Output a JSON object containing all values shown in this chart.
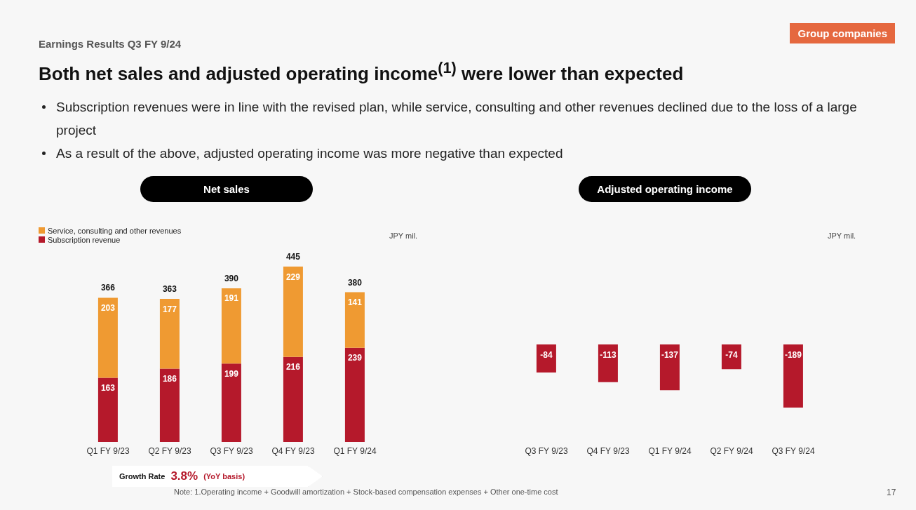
{
  "chart_data": [
    {
      "type": "other",
      "subtitle": "Earnings Results Q3 FY 9/24",
      "title": "Both net sales and adjusted operating income$^{(1)}$ were lower than expected",
      "annotations": [
        "Subscription revenues were in line with the revised plan, while service, consulting and other revenues declined due to the loss of a large project",
        "As a result of the above, adjusted operating income was more negative than expected",
        "Group companies",
        "Note: 1.Operating income + Goodwill amortization + Stock-based compensation expenses + Other one-time cost",
        "17"
      ]
    },
    {
      "type": "bar",
      "title": "Net sales",
      "stacked": true,
      "data_labels": true,
      "legend": "top left",
      "categories": [
        "Q1 FY 9/23",
        "Q2 FY 9/23",
        "Q3 FY 9/23",
        "Q4 FY 9/23",
        "Q1 FY 9/24"
      ],
      "series": [
        {
          "name": "Subscription revenue",
          "color": "#b5192b",
          "values": [
            163,
            186,
            199,
            216,
            239
          ]
        },
        {
          "name": "Service, consulting and other revenues",
          "color": "#ef9a32",
          "values": [
            203,
            177,
            191,
            229,
            141
          ]
        }
      ],
      "totals": [
        "366",
        "363",
        "390",
        "445",
        "380"
      ],
      "annotations": [
        "JPY mil.",
        "Growth Rate",
        "3.8%",
        "(YoY basis)"
      ]
    },
    {
      "type": "bar",
      "title": "Adjusted operating income",
      "data_labels": true,
      "categories": [
        "Q3 FY 9/23",
        "Q4 FY 9/23",
        "Q1 FY 9/24",
        "Q2 FY 9/24",
        "Q3 FY 9/24"
      ],
      "values": [
        -84,
        -113,
        -137,
        -74,
        -189
      ],
      "color": "#b5192b",
      "annotations": [
        "JPY mil."
      ]
    }
  ]
}
